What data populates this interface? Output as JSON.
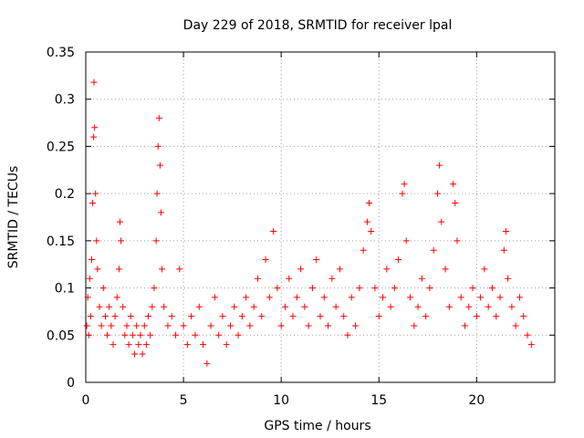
{
  "chart_data": {
    "type": "scatter",
    "title": "Day 229 of 2018, SRMTID for receiver lpal",
    "xlabel": "GPS time / hours",
    "ylabel": "SRMTID / TECUs",
    "xlim": [
      0,
      24
    ],
    "ylim": [
      0,
      0.35
    ],
    "x_ticks": [
      0,
      5,
      10,
      15,
      20
    ],
    "x_tick_labels": [
      "0",
      "5",
      "10",
      "15",
      "20"
    ],
    "y_ticks": [
      0,
      0.05,
      0.1,
      0.15,
      0.2,
      0.25,
      0.3,
      0.35
    ],
    "y_tick_labels": [
      "0",
      "0.05",
      "0.1",
      "0.15",
      "0.2",
      "0.25",
      "0.3",
      "0.35"
    ],
    "grid": true,
    "marker": "+",
    "color": "#ff0000",
    "series": [
      {
        "name": "SRMTID",
        "points": [
          [
            0.05,
            0.06
          ],
          [
            0.1,
            0.09
          ],
          [
            0.15,
            0.05
          ],
          [
            0.2,
            0.11
          ],
          [
            0.25,
            0.07
          ],
          [
            0.3,
            0.13
          ],
          [
            0.35,
            0.19
          ],
          [
            0.4,
            0.26
          ],
          [
            0.42,
            0.318
          ],
          [
            0.45,
            0.27
          ],
          [
            0.5,
            0.2
          ],
          [
            0.55,
            0.15
          ],
          [
            0.6,
            0.12
          ],
          [
            0.7,
            0.08
          ],
          [
            0.8,
            0.06
          ],
          [
            0.9,
            0.1
          ],
          [
            1.0,
            0.07
          ],
          [
            1.1,
            0.05
          ],
          [
            1.2,
            0.08
          ],
          [
            1.3,
            0.06
          ],
          [
            1.4,
            0.04
          ],
          [
            1.5,
            0.07
          ],
          [
            1.6,
            0.09
          ],
          [
            1.7,
            0.12
          ],
          [
            1.75,
            0.17
          ],
          [
            1.8,
            0.15
          ],
          [
            1.9,
            0.08
          ],
          [
            2.0,
            0.05
          ],
          [
            2.1,
            0.06
          ],
          [
            2.2,
            0.04
          ],
          [
            2.3,
            0.07
          ],
          [
            2.4,
            0.05
          ],
          [
            2.5,
            0.03
          ],
          [
            2.6,
            0.06
          ],
          [
            2.7,
            0.04
          ],
          [
            2.8,
            0.05
          ],
          [
            2.9,
            0.03
          ],
          [
            3.0,
            0.06
          ],
          [
            3.1,
            0.04
          ],
          [
            3.2,
            0.07
          ],
          [
            3.3,
            0.05
          ],
          [
            3.4,
            0.08
          ],
          [
            3.5,
            0.1
          ],
          [
            3.6,
            0.15
          ],
          [
            3.65,
            0.2
          ],
          [
            3.7,
            0.25
          ],
          [
            3.75,
            0.28
          ],
          [
            3.8,
            0.23
          ],
          [
            3.85,
            0.18
          ],
          [
            3.9,
            0.12
          ],
          [
            4.0,
            0.08
          ],
          [
            4.2,
            0.06
          ],
          [
            4.4,
            0.07
          ],
          [
            4.6,
            0.05
          ],
          [
            4.8,
            0.12
          ],
          [
            5.0,
            0.06
          ],
          [
            5.2,
            0.04
          ],
          [
            5.4,
            0.07
          ],
          [
            5.6,
            0.05
          ],
          [
            5.8,
            0.08
          ],
          [
            6.0,
            0.04
          ],
          [
            6.2,
            0.02
          ],
          [
            6.4,
            0.06
          ],
          [
            6.6,
            0.09
          ],
          [
            6.8,
            0.05
          ],
          [
            7.0,
            0.07
          ],
          [
            7.2,
            0.04
          ],
          [
            7.4,
            0.06
          ],
          [
            7.6,
            0.08
          ],
          [
            7.8,
            0.05
          ],
          [
            8.0,
            0.07
          ],
          [
            8.2,
            0.09
          ],
          [
            8.4,
            0.06
          ],
          [
            8.6,
            0.08
          ],
          [
            8.8,
            0.11
          ],
          [
            9.0,
            0.07
          ],
          [
            9.2,
            0.13
          ],
          [
            9.4,
            0.09
          ],
          [
            9.6,
            0.16
          ],
          [
            9.8,
            0.1
          ],
          [
            10.0,
            0.06
          ],
          [
            10.2,
            0.08
          ],
          [
            10.4,
            0.11
          ],
          [
            10.6,
            0.07
          ],
          [
            10.8,
            0.09
          ],
          [
            11.0,
            0.12
          ],
          [
            11.2,
            0.08
          ],
          [
            11.4,
            0.06
          ],
          [
            11.6,
            0.1
          ],
          [
            11.8,
            0.13
          ],
          [
            12.0,
            0.07
          ],
          [
            12.2,
            0.09
          ],
          [
            12.4,
            0.06
          ],
          [
            12.6,
            0.11
          ],
          [
            12.8,
            0.08
          ],
          [
            13.0,
            0.12
          ],
          [
            13.2,
            0.07
          ],
          [
            13.4,
            0.05
          ],
          [
            13.6,
            0.09
          ],
          [
            13.8,
            0.06
          ],
          [
            14.0,
            0.1
          ],
          [
            14.2,
            0.14
          ],
          [
            14.4,
            0.17
          ],
          [
            14.5,
            0.19
          ],
          [
            14.6,
            0.16
          ],
          [
            14.8,
            0.1
          ],
          [
            15.0,
            0.07
          ],
          [
            15.2,
            0.09
          ],
          [
            15.4,
            0.12
          ],
          [
            15.6,
            0.08
          ],
          [
            15.8,
            0.1
          ],
          [
            16.0,
            0.13
          ],
          [
            16.2,
            0.2
          ],
          [
            16.3,
            0.21
          ],
          [
            16.4,
            0.15
          ],
          [
            16.6,
            0.09
          ],
          [
            16.8,
            0.06
          ],
          [
            17.0,
            0.08
          ],
          [
            17.2,
            0.11
          ],
          [
            17.4,
            0.07
          ],
          [
            17.6,
            0.1
          ],
          [
            17.8,
            0.14
          ],
          [
            18.0,
            0.2
          ],
          [
            18.1,
            0.23
          ],
          [
            18.2,
            0.17
          ],
          [
            18.4,
            0.12
          ],
          [
            18.6,
            0.08
          ],
          [
            18.8,
            0.21
          ],
          [
            18.9,
            0.19
          ],
          [
            19.0,
            0.15
          ],
          [
            19.2,
            0.09
          ],
          [
            19.4,
            0.06
          ],
          [
            19.6,
            0.08
          ],
          [
            19.8,
            0.1
          ],
          [
            20.0,
            0.07
          ],
          [
            20.2,
            0.09
          ],
          [
            20.4,
            0.12
          ],
          [
            20.6,
            0.08
          ],
          [
            20.8,
            0.1
          ],
          [
            21.0,
            0.07
          ],
          [
            21.2,
            0.09
          ],
          [
            21.4,
            0.14
          ],
          [
            21.5,
            0.16
          ],
          [
            21.6,
            0.11
          ],
          [
            21.8,
            0.08
          ],
          [
            22.0,
            0.06
          ],
          [
            22.2,
            0.09
          ],
          [
            22.4,
            0.07
          ],
          [
            22.6,
            0.05
          ],
          [
            22.8,
            0.04
          ]
        ]
      }
    ]
  }
}
